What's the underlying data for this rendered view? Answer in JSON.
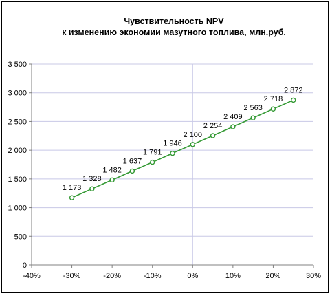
{
  "chart_data": {
    "type": "line",
    "title": "Чувствительность NPV",
    "subtitle": "к изменению экономии мазутного топлива, млн.руб.",
    "x_tick_labels": [
      "-40%",
      "-30%",
      "-20%",
      "-10%",
      "0%",
      "10%",
      "20%",
      "30%"
    ],
    "y_tick_labels": [
      "0",
      "500",
      "1 000",
      "1 500",
      "2 000",
      "2 500",
      "3 000",
      "3 500"
    ],
    "xlim": [
      -40,
      30
    ],
    "ylim": [
      0,
      3500
    ],
    "x_ticks": [
      -40,
      -30,
      -20,
      -10,
      0,
      10,
      20,
      30
    ],
    "y_ticks": [
      0,
      500,
      1000,
      1500,
      2000,
      2500,
      3000,
      3500
    ],
    "grid": "horizontal",
    "series": [
      {
        "color": "#339933",
        "x": [
          -30,
          -25,
          -20,
          -15,
          -10,
          -5,
          0,
          5,
          10,
          15,
          20,
          25
        ],
        "values": [
          1173,
          1328,
          1482,
          1637,
          1791,
          1946,
          2100,
          2254,
          2409,
          2563,
          2718,
          2872
        ],
        "labels": [
          "1 173",
          "1 328",
          "1 482",
          "1 637",
          "1 791",
          "1 946",
          "2 100",
          "2 254",
          "2 409",
          "2 563",
          "2 718",
          "2 872"
        ]
      }
    ],
    "colors": {
      "gridline": "#c8c8e6",
      "axis": "#808080",
      "zero_line": "#c8c8e6"
    }
  }
}
